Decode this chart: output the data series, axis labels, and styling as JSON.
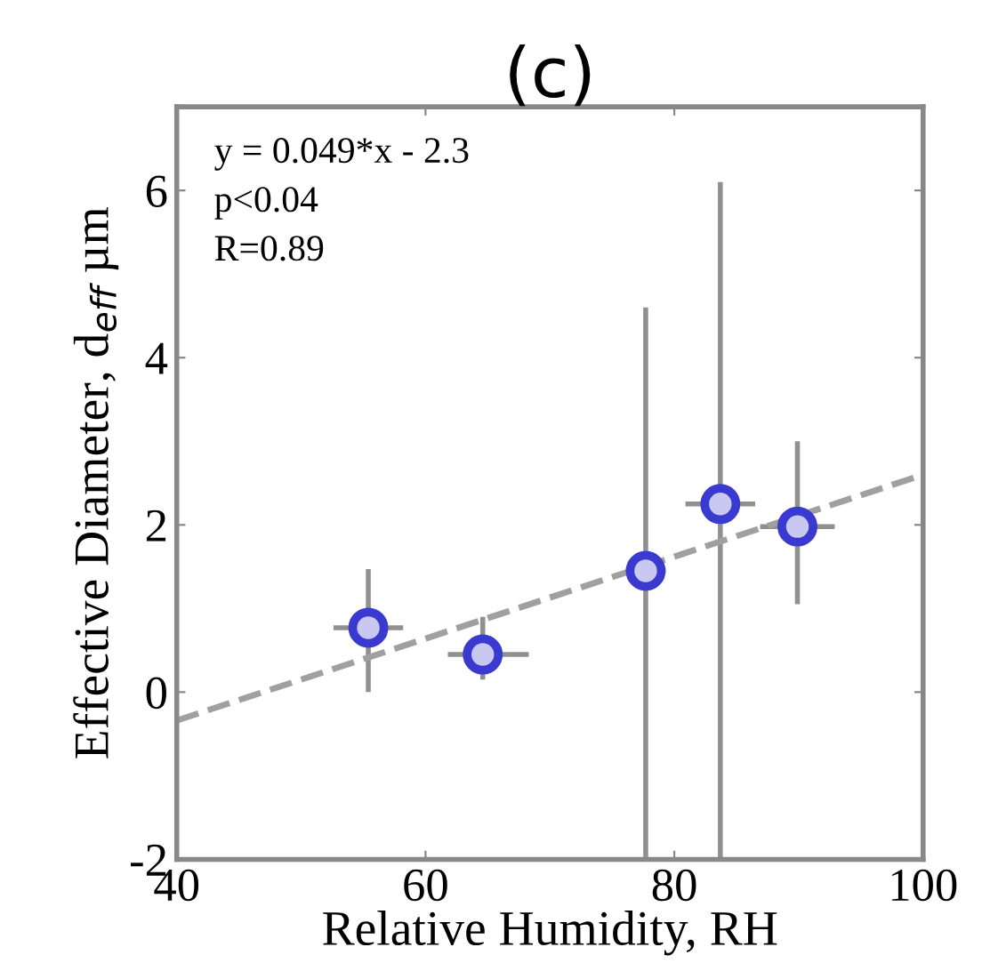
{
  "chart_data": {
    "type": "scatter",
    "title": "(c)",
    "xlabel": "Relative Humidity, RH",
    "ylabel": "Effective Diameter, d$_{eff}$ µm",
    "annotations": [
      "y = 0.049*x - 2.3",
      "p<0.04",
      "R=0.89"
    ],
    "xlim": [
      40,
      100
    ],
    "ylim": [
      -2,
      7
    ],
    "xticks": [
      40,
      60,
      80,
      100
    ],
    "yticks": [
      -2,
      0,
      2,
      4,
      6
    ],
    "grid": false,
    "legend": false,
    "series": [
      {
        "type": "line",
        "color": "#a0a0a0",
        "x": [
          40,
          100
        ],
        "values": [
          -0.34,
          2.6
        ],
        "line_style": "dashed",
        "marker": "none"
      },
      {
        "color": "#3a3ad0",
        "marker": "circle",
        "x": [
          55.4,
          64.6,
          77.7,
          83.7,
          89.9
        ],
        "values": [
          0.77,
          0.45,
          1.45,
          2.25,
          1.98
        ],
        "errors": [
          [
            0.0,
            1.47
          ],
          [
            0.15,
            0.9
          ],
          [
            -2,
            4.6
          ],
          [
            -2,
            6.1
          ],
          [
            1.05,
            3.0
          ]
        ],
        "xerrors": [
          [
            52.6,
            58.2
          ],
          [
            61.8,
            68.3
          ],
          [
            76.1,
            79.3
          ],
          [
            80.9,
            86.5
          ],
          [
            86.9,
            92.9
          ]
        ]
      }
    ]
  }
}
